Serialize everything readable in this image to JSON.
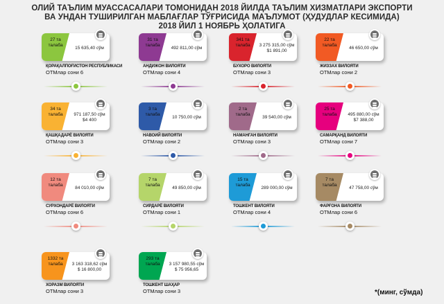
{
  "title": {
    "line1": "ОЛИЙ ТАЪЛИМ МУАССАСАЛАРИ ТОМОНИДАН 2018 ЙИЛДА ТАЪЛИМ ХИЗМАТЛАРИ ЭКСПОРТИ",
    "line2": "ВА УНДАН ТУШИРИЛГАН МАБЛАҒЛАР ТЎҒРИСИДА МАЪЛУМОТ (ҲУДУДЛАР КЕСИМИДА)",
    "line3": "2018 ЙИЛ 1 НОЯБРЬ ҲОЛАТИГА"
  },
  "count_prefix": "ОТМлар сони",
  "icons": {
    "money": "money-stack-icon",
    "connector": "dot-connector-icon"
  },
  "regions": [
    {
      "name": "ҚОРАҚАЛПОҒИСТОН РЕСПУБЛИКАСИ",
      "students": "27 та талаба",
      "amount": "15 635,40 сўм",
      "amount_usd": "",
      "otm_count": "6",
      "color": "#8cc63f"
    },
    {
      "name": "АНДИЖОН ВИЛОЯТИ",
      "students": "31 та талаба",
      "amount": "492 811,00 сўм",
      "amount_usd": "",
      "otm_count": "4",
      "color": "#8e3a92"
    },
    {
      "name": "БУХОРО ВИЛОЯТИ",
      "students": "341 та талаба",
      "amount": "3 275 315,00 сўм",
      "amount_usd": "$1 891,00",
      "otm_count": "3",
      "color": "#d9242d"
    },
    {
      "name": "ЖИЗЗАХ ВИЛОЯТИ",
      "students": "22 та талаба",
      "amount": "46 650,00 сўм",
      "amount_usd": "",
      "otm_count": "2",
      "color": "#f15a24"
    },
    {
      "name": "ҚАШҚАДАРЁ ВИЛОЯТИ",
      "students": "34 та талаба",
      "amount": "971 187,50 сўм",
      "amount_usd": "$4 400",
      "otm_count": "3",
      "color": "#f9b233"
    },
    {
      "name": "НАВОИЙ ВИЛОЯТИ",
      "students": "3 та талаба",
      "amount": "10 750,00 сўм",
      "amount_usd": "",
      "otm_count": "2",
      "color": "#2e5aa8"
    },
    {
      "name": "НАМАНГАН ВИЛОЯТИ",
      "students": "2 та талаба",
      "amount": "39 540,00 сўм",
      "amount_usd": "",
      "otm_count": "3",
      "color": "#a06a8a"
    },
    {
      "name": "САМАРҚАНД ВИЛОЯТИ",
      "students": "25 та талаба",
      "amount": "495 880,00 сўм",
      "amount_usd": "$7 388,00",
      "otm_count": "7",
      "color": "#e6007e"
    },
    {
      "name": "СУРХОНДАРЁ ВИЛОЯТИ",
      "students": "12 та талаба",
      "amount": "84 010,00 сўм",
      "amount_usd": "",
      "otm_count": "6",
      "color": "#f08a7e"
    },
    {
      "name": "СИРДАРЁ ВИЛОЯТИ",
      "students": "7 та талаба",
      "amount": "49 850,00 сўм",
      "amount_usd": "",
      "otm_count": "1",
      "color": "#b5d56a"
    },
    {
      "name": "ТОШКЕНТ ВИЛОЯТИ",
      "students": "15 та талаба",
      "amount": "289 000,00 сўм",
      "amount_usd": "",
      "otm_count": "4",
      "color": "#1e9bd7"
    },
    {
      "name": "ФАРҒОНА ВИЛОЯТИ",
      "students": "7 та талаба",
      "amount": "47 758,00 сўм",
      "amount_usd": "",
      "otm_count": "6",
      "color": "#a68a64"
    },
    {
      "name": "ХОРАЗМ ВИЛОЯТИ",
      "students": "1332 та талаба",
      "amount": "3 163 318,62 сўм",
      "amount_usd": "$ 16 800,00",
      "otm_count": "3",
      "color": "#f7941d"
    },
    {
      "name": "ТОШКЕНТ ШАҲАР",
      "students": "293 та талаба",
      "amount": "3 157 980,55 сўм",
      "amount_usd": "$ 75 956,65",
      "otm_count": "3",
      "color": "#00a651"
    }
  ],
  "connectors": [
    {
      "color": "#8cc63f"
    },
    {
      "color": "#8e3a92"
    },
    {
      "color": "#d9242d"
    },
    {
      "color": "#f15a24"
    },
    {
      "color": "#f9b233"
    },
    {
      "color": "#2e5aa8"
    },
    {
      "color": "#a06a8a"
    },
    {
      "color": "#e6007e"
    },
    {
      "color": "#f08a7e"
    },
    {
      "color": "#b5d56a"
    },
    {
      "color": "#1e9bd7"
    },
    {
      "color": "#a68a64"
    }
  ],
  "footnote": "*(минг, сўмда)"
}
